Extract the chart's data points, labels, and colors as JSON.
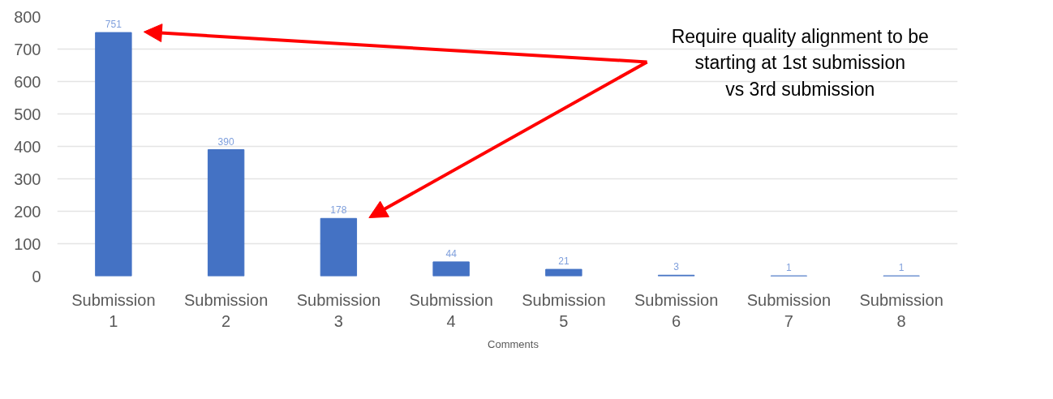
{
  "chart_data": {
    "type": "bar",
    "categories": [
      "Submission 1",
      "Submission 2",
      "Submission 3",
      "Submission 4",
      "Submission 5",
      "Submission 6",
      "Submission 7",
      "Submission 8"
    ],
    "series": [
      {
        "name": "Comments",
        "color": "#4472c4",
        "values": [
          751,
          390,
          178,
          44,
          21,
          3,
          1,
          1
        ]
      }
    ],
    "ylim": [
      0,
      800
    ],
    "yticks": [
      0,
      100,
      200,
      300,
      400,
      500,
      600,
      700,
      800
    ],
    "grid": "y",
    "legend": "bottom",
    "data_labels": true,
    "annotations": [
      "Require quality alignment to be\nstarting at 1st submission\nvs 3rd submission"
    ]
  }
}
